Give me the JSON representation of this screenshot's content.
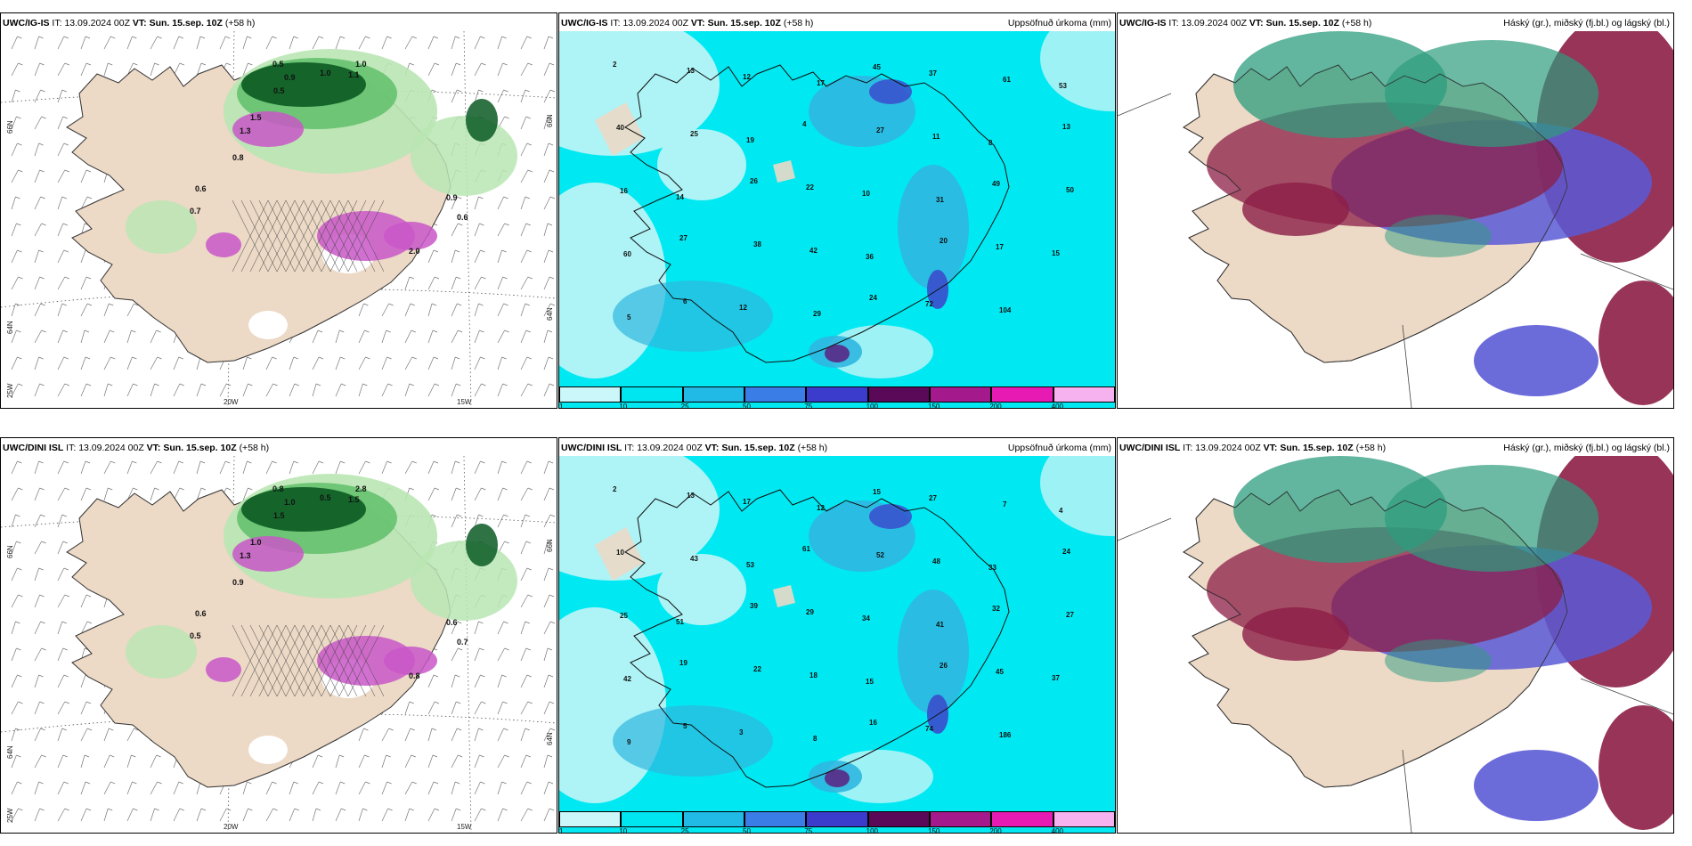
{
  "panels": [
    {
      "model": "UWC/IG-IS",
      "it_label": "IT:",
      "it": "13.09.2024 00Z",
      "vt_label": "VT:",
      "vt": "Sun. 15.sep. 10Z",
      "lead": "(+58 h)",
      "right_title": "",
      "kind": "precip-wind",
      "lat_labels": [
        "66N",
        "64N"
      ],
      "lon_labels": [
        "20W",
        "15W"
      ],
      "corner_label": "25W",
      "right_lat_labels": [
        "66N",
        "64N"
      ],
      "values": [
        "0.5",
        "0.9",
        "1.0",
        "1.1",
        "0.6",
        "0.7",
        "1.3",
        "2.0",
        "0.8",
        "1.5",
        "0.9",
        "0.6",
        "0.5",
        "1.0"
      ]
    },
    {
      "model": "UWC/IG-IS",
      "it_label": "IT:",
      "it": "13.09.2024 00Z",
      "vt_label": "VT:",
      "vt": "Sun. 15.sep. 10Z",
      "lead": "(+58 h)",
      "right_title": "Uppsöfnuð úrkoma (mm)",
      "kind": "accum",
      "colorbar": [
        "1",
        "10",
        "25",
        "50",
        "75",
        "100",
        "150",
        "200",
        "400"
      ],
      "values": [
        "2",
        "13",
        "12",
        "17",
        "45",
        "37",
        "61",
        "53",
        "40",
        "25",
        "19",
        "4",
        "27",
        "11",
        "8",
        "13",
        "16",
        "14",
        "26",
        "22",
        "10",
        "31",
        "49",
        "50",
        "60",
        "27",
        "38",
        "42",
        "36",
        "20",
        "17",
        "15",
        "5",
        "6",
        "12",
        "29",
        "24",
        "72",
        "104"
      ]
    },
    {
      "model": "UWC/IG-IS",
      "it_label": "IT:",
      "it": "13.09.2024 00Z",
      "vt_label": "VT:",
      "vt": "Sun. 15.sep. 10Z",
      "lead": "(+58 h)",
      "right_title": "Háský (gr.), miðský (fj.bl.) og lágský (bl.)",
      "kind": "cloud"
    },
    {
      "model": "UWC/DINI ISL",
      "it_label": "IT:",
      "it": "13.09.2024 00Z",
      "vt_label": "VT:",
      "vt": "Sun. 15.sep. 10Z",
      "lead": "(+58 h)",
      "right_title": "",
      "kind": "precip-wind",
      "lat_labels": [
        "66N",
        "64N"
      ],
      "lon_labels": [
        "20W",
        "15W"
      ],
      "corner_label": "25W",
      "right_lat_labels": [
        "66N",
        "64N"
      ],
      "values": [
        "0.8",
        "1.0",
        "0.5",
        "1.5",
        "0.6",
        "0.5",
        "1.3",
        "0.8",
        "0.9",
        "1.0",
        "0.6",
        "0.7",
        "1.5",
        "2.8"
      ]
    },
    {
      "model": "UWC/DINI ISL",
      "it_label": "IT:",
      "it": "13.09.2024 00Z",
      "vt_label": "VT:",
      "vt": "Sun. 15.sep. 10Z",
      "lead": "(+58 h)",
      "right_title": "Uppsöfnuð úrkoma (mm)",
      "kind": "accum",
      "colorbar": [
        "1",
        "10",
        "25",
        "50",
        "75",
        "100",
        "150",
        "200",
        "400"
      ],
      "values": [
        "2",
        "13",
        "17",
        "12",
        "15",
        "27",
        "7",
        "4",
        "10",
        "43",
        "53",
        "61",
        "52",
        "48",
        "33",
        "24",
        "25",
        "51",
        "39",
        "29",
        "34",
        "41",
        "32",
        "27",
        "42",
        "19",
        "22",
        "18",
        "15",
        "26",
        "45",
        "37",
        "9",
        "5",
        "3",
        "8",
        "16",
        "74",
        "186"
      ]
    },
    {
      "model": "UWC/DINI ISL",
      "it_label": "IT:",
      "it": "13.09.2024 00Z",
      "vt_label": "VT:",
      "vt": "Sun. 15.sep. 10Z",
      "lead": "(+58 h)",
      "right_title": "Háský (gr.), miðský (fj.bl.) og lágský (bl.)",
      "kind": "cloud"
    }
  ],
  "colors": {
    "land": "#ecd9c6",
    "sea": "#ffffff",
    "green_light": "#b9e6b3",
    "green_mid": "#5fbf6a",
    "green_dark": "#0b5a24",
    "magenta": "#c957c8",
    "cyan_bg": "#00e9f2",
    "cyan_light": "#aef3f6",
    "blue_mid": "#2fb7e0",
    "blue_dark": "#3a4dcc",
    "purple": "#5a2080",
    "cloud_high": "#2e9c7e",
    "cloud_mid": "#8c1e46",
    "cloud_low": "#5b5bd6"
  }
}
